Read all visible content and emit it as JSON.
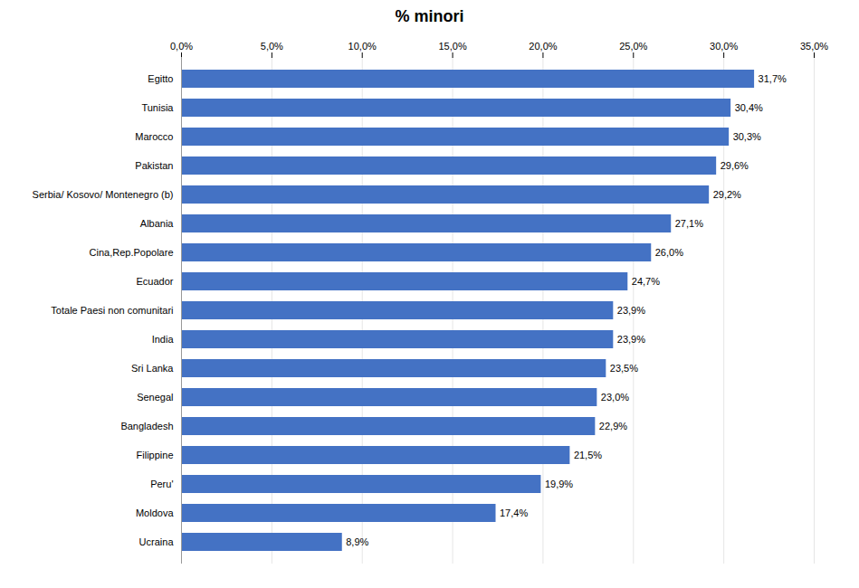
{
  "chart_data": {
    "type": "bar",
    "orientation": "horizontal",
    "title": "% minori",
    "categories": [
      "Ucraina",
      "Moldova",
      "Peru'",
      "Filippine",
      "Bangladesh",
      "Senegal",
      "Sri Lanka",
      "India",
      "Totale Paesi non comunitari",
      "Ecuador",
      "Cina,Rep.Popolare",
      "Albania",
      "Serbia/ Kosovo/ Montenegro (b)",
      "Pakistan",
      "Marocco",
      "Tunisia",
      "Egitto"
    ],
    "values": [
      8.9,
      17.4,
      19.9,
      21.5,
      22.9,
      23.0,
      23.5,
      23.9,
      23.9,
      24.7,
      26.0,
      27.1,
      29.2,
      29.6,
      30.3,
      30.4,
      31.7
    ],
    "value_labels": [
      "8,9%",
      "17,4%",
      "19,9%",
      "21,5%",
      "22,9%",
      "23,0%",
      "23,5%",
      "23,9%",
      "23,9%",
      "24,7%",
      "26,0%",
      "27,1%",
      "29,2%",
      "29,6%",
      "30,3%",
      "30,4%",
      "31,7%"
    ],
    "color": "#4472C4",
    "xlim": [
      0,
      35
    ],
    "xticks": [
      {
        "value": 0,
        "label": "0,0%"
      },
      {
        "value": 5,
        "label": "5,0%"
      },
      {
        "value": 10,
        "label": "10,0%"
      },
      {
        "value": 15,
        "label": "15,0%"
      },
      {
        "value": 20,
        "label": "20,0%"
      },
      {
        "value": 25,
        "label": "25,0%"
      },
      {
        "value": 30,
        "label": "30,0%"
      },
      {
        "value": 35,
        "label": "35,0%"
      }
    ],
    "grid": true,
    "data_labels": true
  }
}
